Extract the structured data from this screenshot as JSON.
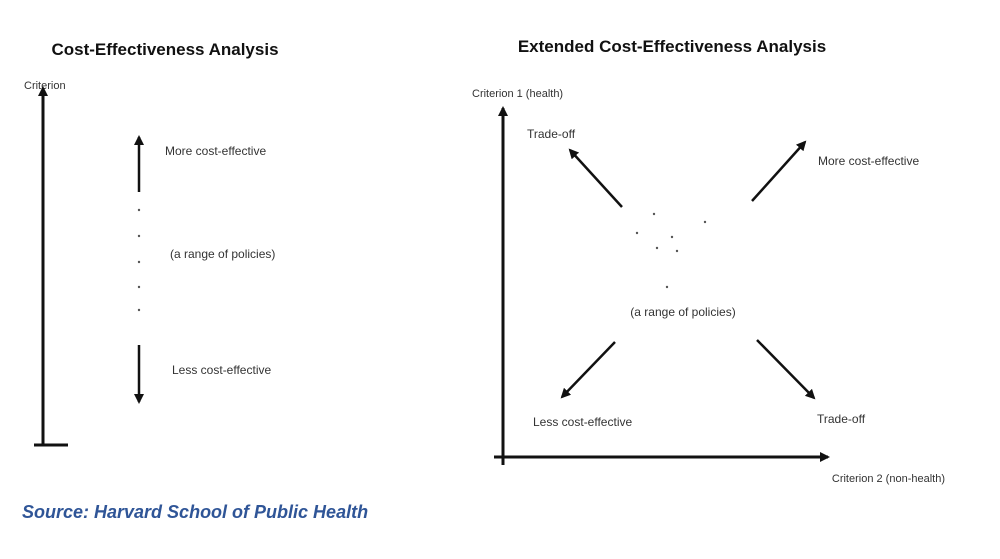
{
  "colors": {
    "line": "#111111",
    "text": "#333333",
    "source": "#2f5597"
  },
  "cea": {
    "title": "Cost-Effectiveness Analysis",
    "axis_label": "Criterion",
    "top_label": "More cost-effective",
    "middle_label": "(a range of policies)",
    "bottom_label": "Less cost-effective"
  },
  "ecea": {
    "title": "Extended Cost-Effectiveness Analysis",
    "y_axis_label": "Criterion 1 (health)",
    "x_axis_label": "Criterion 2 (non-health)",
    "top_left_label": "Trade-off",
    "top_right_label": "More cost-effective",
    "center_label": "(a range of policies)",
    "bottom_left_label": "Less cost-effective",
    "bottom_right_label": "Trade-off"
  },
  "source": "Source: Harvard School of Public Health"
}
